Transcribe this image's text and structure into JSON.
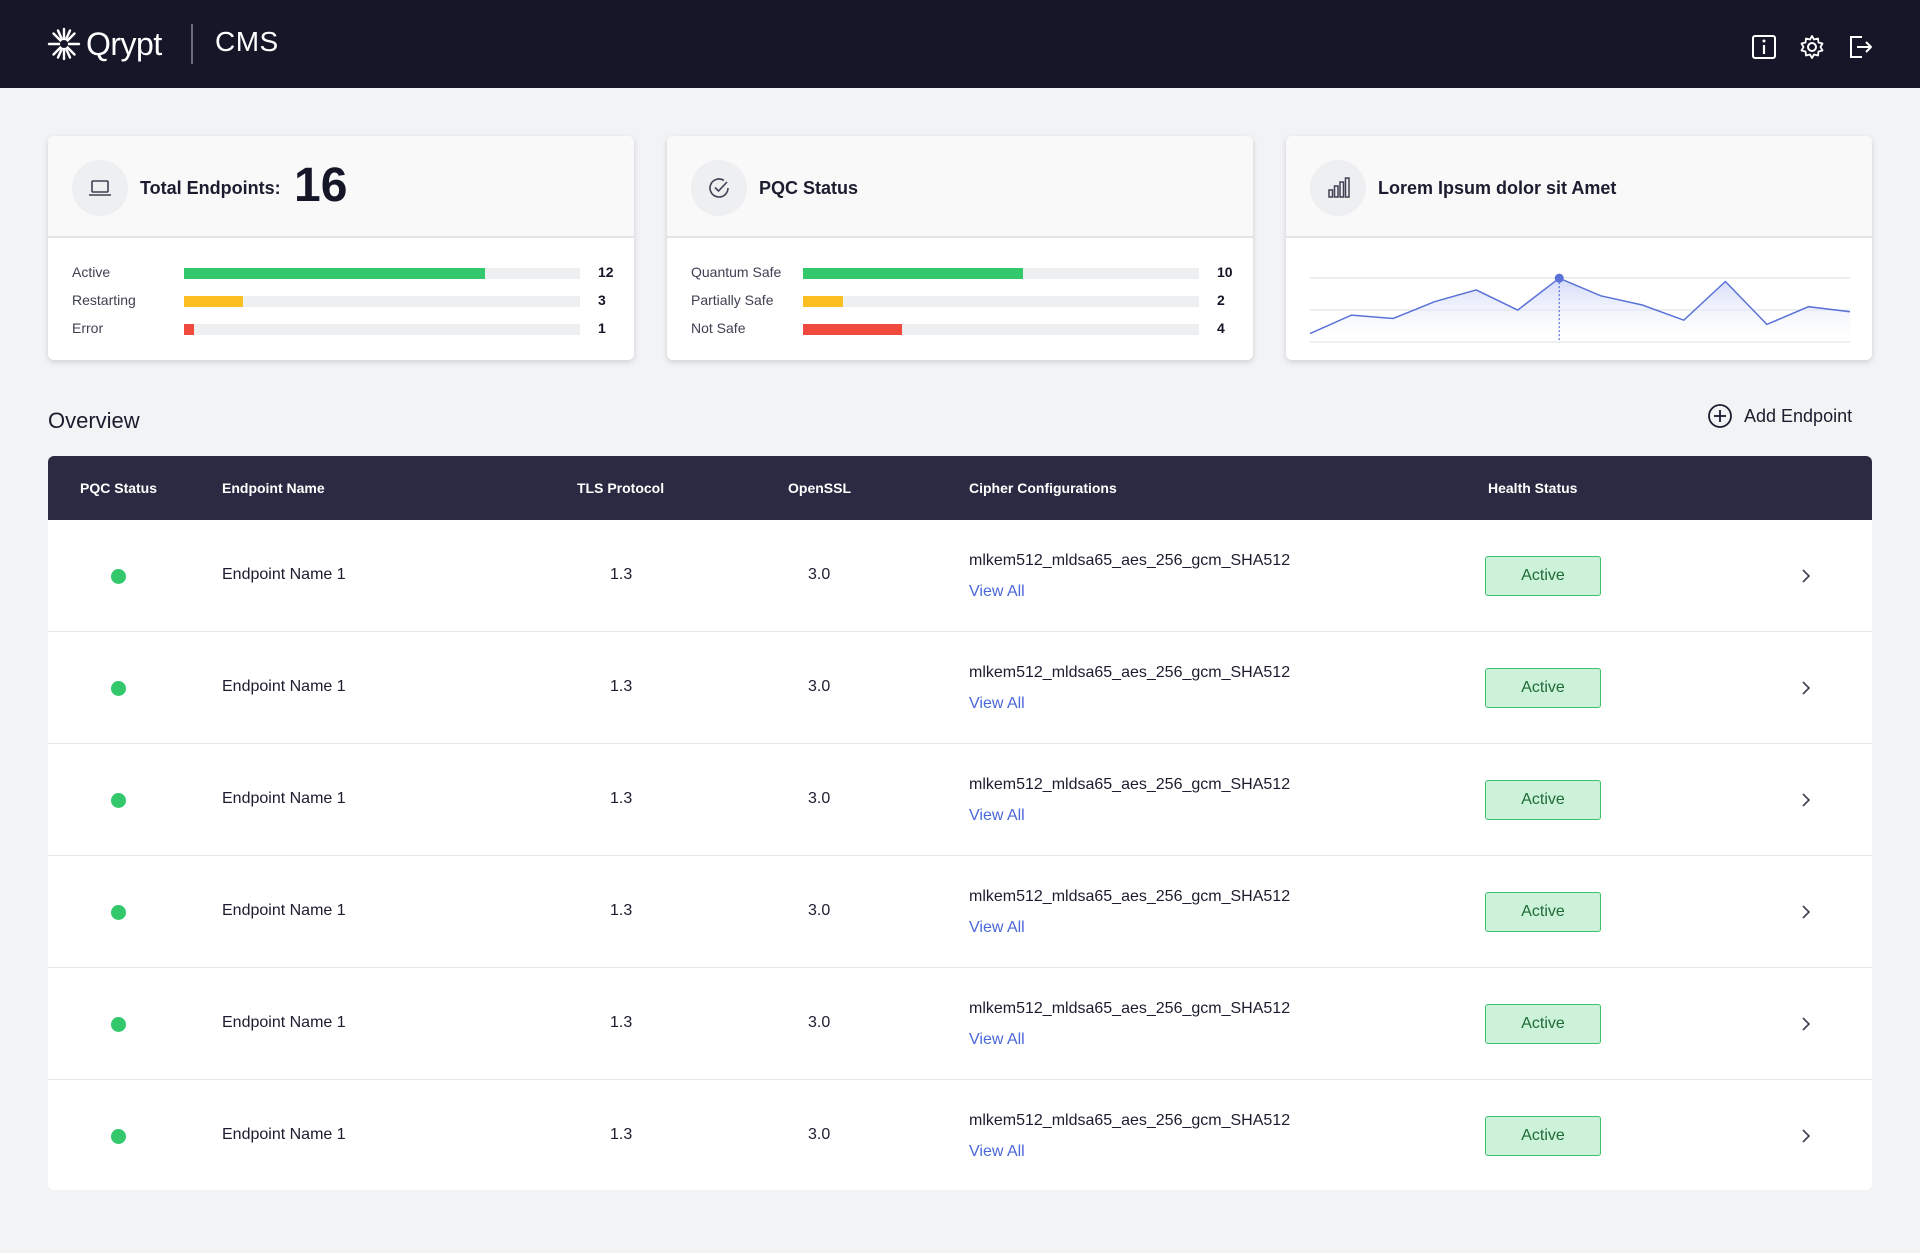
{
  "header": {
    "logo_text": "Qrypt",
    "app_name": "CMS",
    "icons": [
      "info-icon",
      "gear-icon",
      "logout-icon"
    ]
  },
  "cards": {
    "endpoints": {
      "title": "Total Endpoints:",
      "total": "16",
      "icon": "laptop-icon",
      "rows": [
        {
          "label": "Active",
          "value": "12",
          "fraction": 0.76,
          "color": "#34c86d"
        },
        {
          "label": "Restarting",
          "value": "3",
          "fraction": 0.15,
          "color": "#fbbf24"
        },
        {
          "label": "Error",
          "value": "1",
          "fraction": 0.025,
          "color": "#f04a3e"
        }
      ]
    },
    "pqc": {
      "title": "PQC Status",
      "icon": "check-circle-icon",
      "rows": [
        {
          "label": "Quantum Safe",
          "value": "10",
          "fraction": 0.555,
          "color": "#34c86d"
        },
        {
          "label": "Partially Safe",
          "value": "2",
          "fraction": 0.1,
          "color": "#fbbf24"
        },
        {
          "label": "Not Safe",
          "value": "4",
          "fraction": 0.25,
          "color": "#f04a3e"
        }
      ]
    },
    "chart": {
      "title": "Lorem Ipsum dolor sit Amet",
      "icon": "bar-chart-icon"
    }
  },
  "chart_data": {
    "type": "area",
    "x": [
      0,
      1,
      2,
      3,
      4,
      5,
      6,
      7,
      8,
      9,
      10,
      11,
      12,
      13
    ],
    "values": [
      10,
      32,
      28,
      48,
      62,
      38,
      76,
      55,
      44,
      26,
      72,
      21,
      42,
      36
    ],
    "highlight_index": 6,
    "ylim": [
      0,
      100
    ],
    "line_color": "#5a72d8",
    "grid": true
  },
  "overview": {
    "title": "Overview",
    "add_label": "Add Endpoint"
  },
  "table": {
    "columns": [
      "PQC Status",
      "Endpoint Name",
      "TLS Protocol",
      "OpenSSL",
      "Cipher Configurations",
      "Health Status"
    ],
    "rows": [
      {
        "status": "green",
        "name": "Endpoint Name 1",
        "tls": "1.3",
        "openssl": "3.0",
        "cipher": "mlkem512_mldsa65_aes_256_gcm_SHA512",
        "view_all": "View All",
        "health": "Active"
      },
      {
        "status": "green",
        "name": "Endpoint Name 1",
        "tls": "1.3",
        "openssl": "3.0",
        "cipher": "mlkem512_mldsa65_aes_256_gcm_SHA512",
        "view_all": "View All",
        "health": "Active"
      },
      {
        "status": "green",
        "name": "Endpoint Name 1",
        "tls": "1.3",
        "openssl": "3.0",
        "cipher": "mlkem512_mldsa65_aes_256_gcm_SHA512",
        "view_all": "View All",
        "health": "Active"
      },
      {
        "status": "green",
        "name": "Endpoint Name 1",
        "tls": "1.3",
        "openssl": "3.0",
        "cipher": "mlkem512_mldsa65_aes_256_gcm_SHA512",
        "view_all": "View All",
        "health": "Active"
      },
      {
        "status": "green",
        "name": "Endpoint Name 1",
        "tls": "1.3",
        "openssl": "3.0",
        "cipher": "mlkem512_mldsa65_aes_256_gcm_SHA512",
        "view_all": "View All",
        "health": "Active"
      },
      {
        "status": "green",
        "name": "Endpoint Name 1",
        "tls": "1.3",
        "openssl": "3.0",
        "cipher": "mlkem512_mldsa65_aes_256_gcm_SHA512",
        "view_all": "View All",
        "health": "Active"
      }
    ]
  }
}
